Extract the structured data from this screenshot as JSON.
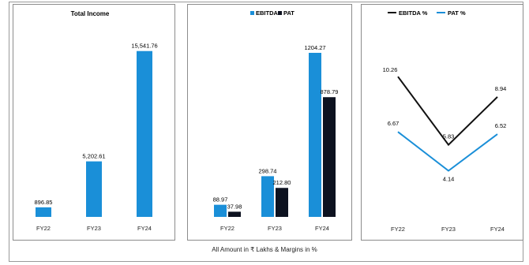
{
  "chart_data": [
    {
      "type": "bar",
      "title": "Total Income",
      "categories": [
        "FY22",
        "FY23",
        "FY24"
      ],
      "value_labels": [
        "896.85",
        "5,202.61",
        "15,541.76"
      ],
      "values": [
        896.85,
        5202.61,
        15541.76
      ],
      "ylim": [
        0,
        17000
      ],
      "colors": {
        "bar": "#1a8fd8"
      }
    },
    {
      "type": "bar",
      "categories": [
        "FY22",
        "FY23",
        "FY24"
      ],
      "series": [
        {
          "name": "EBITDA",
          "values": [
            88.97,
            298.74,
            1204.27
          ],
          "labels": [
            "88.97",
            "298.74",
            "1204.27"
          ],
          "color": "#1a8fd8"
        },
        {
          "name": "PAT",
          "values": [
            37.98,
            212.8,
            878.79
          ],
          "labels": [
            "37.98",
            "212.80",
            "878.79"
          ],
          "color": "#0d1220"
        }
      ],
      "ylim": [
        0,
        1320
      ],
      "legend": "top-center"
    },
    {
      "type": "line",
      "categories": [
        "FY22",
        "FY23",
        "FY24"
      ],
      "series": [
        {
          "name": "EBITDA %",
          "values": [
            10.26,
            5.83,
            8.94
          ],
          "labels": [
            "10.26",
            "5.83",
            "8.94"
          ],
          "color": "#111111"
        },
        {
          "name": "PAT %",
          "values": [
            6.67,
            4.14,
            6.52
          ],
          "labels": [
            "6.67",
            "4.14",
            "6.52"
          ],
          "color": "#1a8fd8"
        }
      ],
      "ylim": [
        1.5,
        13.5
      ],
      "legend": "top-left"
    }
  ],
  "footnote": "All Amount in ₹ Lakhs & Margins in %"
}
